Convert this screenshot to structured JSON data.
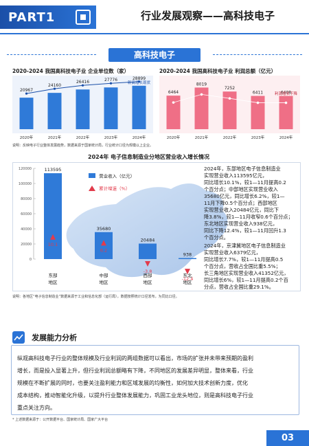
{
  "header": {
    "part_label": "PART1",
    "title": "行业发展观察——高科技电子"
  },
  "section": {
    "title": "高科技电子"
  },
  "chart1": {
    "title": "2020-2024 我国高科技电子业 企业单位数（家）",
    "annotation": "新高增长现状",
    "chart_data": {
      "type": "bar",
      "categories": [
        "2020年",
        "2021年",
        "2022年",
        "2023年",
        "2024年"
      ],
      "values": [
        20967,
        24160,
        26416,
        27776,
        28899
      ],
      "ylim": [
        0,
        32000
      ]
    }
  },
  "chart2": {
    "title": "2020-2024 我国高科技电子业 利润总额（亿元）",
    "annotation": "利润增长下降",
    "chart_data": {
      "type": "bar",
      "categories": [
        "2020年",
        "2021年",
        "2022年",
        "2023年",
        "2024年"
      ],
      "values": [
        6464,
        8019,
        7252,
        6411,
        6408
      ],
      "ylim": [
        0,
        9000
      ]
    }
  },
  "chart_note": "说明：反映电子行业整体发展趋势，数据来源于国家统计局，行业统计口径为规模以上企业。",
  "region_chart": {
    "title": "2024年 电子信息制造业分地区营业收入增长情况",
    "legend_revenue": "营业收入（亿元）",
    "legend_growth": "累计增速（%）",
    "chart_data": {
      "type": "bar",
      "categories": [
        "东部地区",
        "中部地区",
        "西部地区",
        "东北地区"
      ],
      "series": [
        {
          "name": "营业收入（亿元）",
          "values": [
            113595,
            35680,
            20484,
            938
          ]
        },
        {
          "name": "累计增速（%）",
          "values": [
            10.1,
            6.2,
            -3.8,
            -12.4
          ]
        }
      ],
      "ylim": [
        0,
        120000
      ],
      "yticks": [
        "120000",
        "100000",
        "80000",
        "60000",
        "40000",
        "20000",
        "0"
      ]
    },
    "revenue_labels": [
      "113595",
      "35680",
      "20484",
      "938"
    ],
    "growth_labels": [
      "10.1",
      "6.2",
      "-3.8",
      "-12.4"
    ],
    "region_labels": [
      [
        "东部",
        "地区"
      ],
      [
        "中部",
        "地区"
      ],
      [
        "西部",
        "地区"
      ],
      [
        "东北",
        "地区"
      ]
    ],
    "text_block_1": [
      "2024年，东部地区电子信息制造业",
      "实现营业收入113595亿元，",
      "同比增长10.1%，较1—11月提高0.2",
      "个百分点；中部地区实现营业收入",
      "35680亿元，同比增长6.2%，较1—",
      "11月下降0.5个百分点；西部地区",
      "实现营业收入20484亿元，同比下",
      "降3.8%，较1—11月收窄0.6个百分点；",
      "东北地区实现营业收入938亿元，",
      "同比下降12.4%，较1—11月回升1.3",
      "个百分点。"
    ],
    "text_block_2": [
      "2024年，京津冀地区电子信息制造业",
      "实现营业收入6379亿元，",
      "同比增长7.7%，较1—11月提高0.5",
      "个百分点，营收占全国比重5.5%；",
      "长三角地区实现营业收入41352亿元，",
      "同比增长6%，较1—11月提高0.2个百",
      "分点，营收占全国比重29.1%。"
    ],
    "source_note": "说明：各地区“电子信息制造业”数据来源于工业和信息化部（运行局），数据按照统计口径发布，为同比口径。"
  },
  "capability": {
    "heading": "发展能力分析",
    "lines": [
      "纵观高科技电子行业的整体规模及行业利润的两组数据可以看出，市场的扩张并未带来预期的盈利",
      "增长，而是投入显著上升，但行业利润总额略有下降，不同地区的发展差异明显，整体来看，行业",
      "规模在不断扩展的同时，也要关注盈利能力和区域发展的均衡性，如何加大技术创新力度，优化",
      "成本结构，推动智能化升级，以提升行业整体发展能力，巩固工业龙头地位，则是高科技电子行业",
      "重点关注方向。"
    ]
  },
  "footnote": "* 上述数据来源于：公开数据平台、国家统计局、国家广大平台",
  "page_number": "03",
  "colors": {
    "primary": "#2a73d6",
    "bar_blue": "#2f7ad8",
    "bar_pink": "#ef6f86",
    "growth_red": "#e23b4b"
  }
}
